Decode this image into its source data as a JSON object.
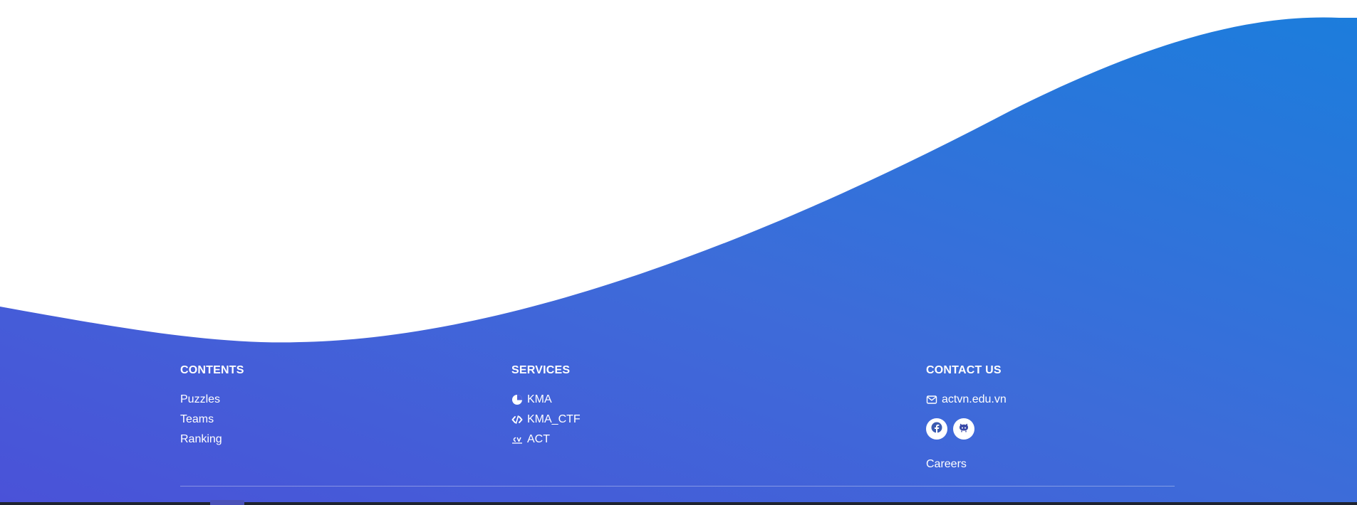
{
  "colors": {
    "gradient_start": "#4a52d8",
    "gradient_end": "#1c7ddc",
    "text": "#ffffff"
  },
  "footer": {
    "contents": {
      "title": "CONTENTS",
      "links": [
        {
          "label": "Puzzles"
        },
        {
          "label": "Teams"
        },
        {
          "label": "Ranking"
        }
      ]
    },
    "services": {
      "title": "SERVICES",
      "links": [
        {
          "label": "KMA",
          "icon": "pie-chart-icon"
        },
        {
          "label": "KMA_CTF",
          "icon": "code-icon"
        },
        {
          "label": "ACT",
          "icon": "cv-icon"
        }
      ]
    },
    "contact": {
      "title": "CONTACT US",
      "email": {
        "label": "actvn.edu.vn",
        "icon": "mail-icon"
      },
      "social": [
        {
          "icon": "facebook-icon"
        },
        {
          "icon": "github-icon"
        }
      ],
      "careers": "Careers"
    }
  }
}
